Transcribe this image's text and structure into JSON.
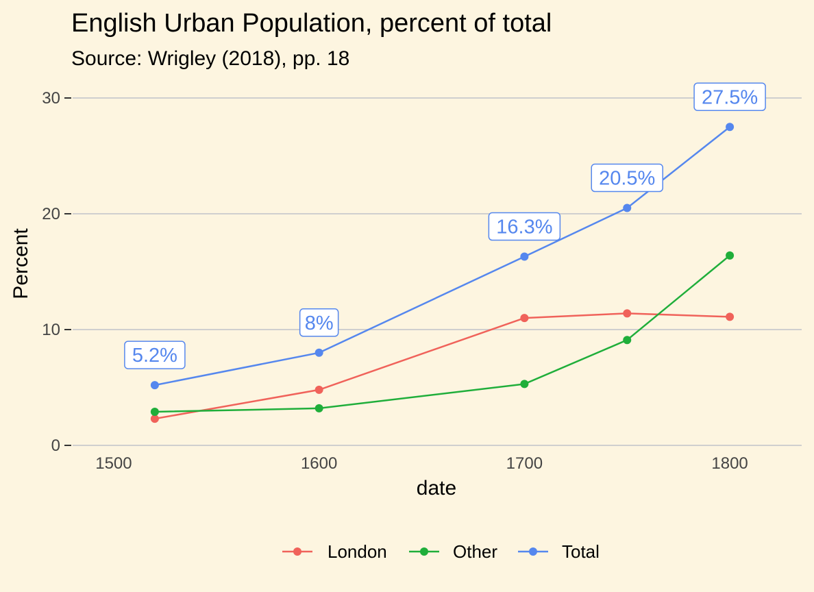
{
  "chart_data": {
    "type": "line",
    "title": "English Urban Population, percent of total",
    "subtitle": "Source: Wrigley (2018), pp. 18",
    "xlabel": "date",
    "ylabel": "Percent",
    "xlim": [
      1480,
      1835
    ],
    "ylim": [
      0,
      30
    ],
    "xticks": [
      1500,
      1600,
      1700,
      1800
    ],
    "yticks": [
      0,
      10,
      20,
      30
    ],
    "grid": "horizontal major",
    "legend": "bottom",
    "x": [
      1520,
      1600,
      1700,
      1750,
      1800
    ],
    "series": [
      {
        "name": "London",
        "color": "#f0625a",
        "values": [
          2.3,
          4.8,
          11.0,
          11.4,
          11.1
        ]
      },
      {
        "name": "Other",
        "color": "#1fae3a",
        "values": [
          2.9,
          3.2,
          5.3,
          9.1,
          16.4
        ]
      },
      {
        "name": "Total",
        "color": "#5587ee",
        "values": [
          5.2,
          8.0,
          16.3,
          20.5,
          27.5
        ]
      }
    ],
    "labels": [
      {
        "x": 1520,
        "y": 5.2,
        "text": "5.2%"
      },
      {
        "x": 1600,
        "y": 8.0,
        "text": "8%"
      },
      {
        "x": 1700,
        "y": 16.3,
        "text": "16.3%"
      },
      {
        "x": 1750,
        "y": 20.5,
        "text": "20.5%"
      },
      {
        "x": 1800,
        "y": 27.5,
        "text": "27.5%"
      }
    ]
  }
}
